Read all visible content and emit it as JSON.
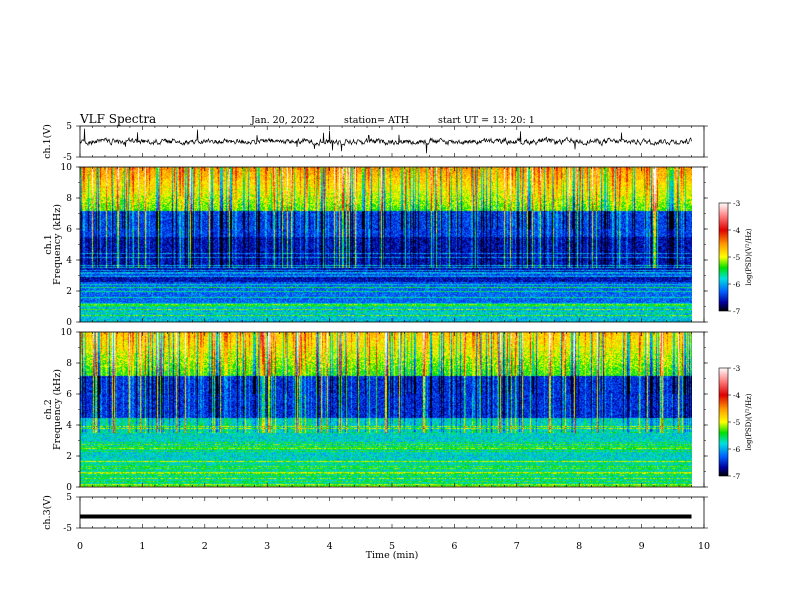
{
  "header": {
    "title": "VLF  Spectra",
    "date": "Jan. 20, 2022",
    "station": "station= ATH",
    "start": "start  UT  =    13: 20: 1"
  },
  "chart_data": [
    {
      "id": "ch1-waveform",
      "type": "line",
      "ylabel": "ch.1(V)",
      "ylim": [
        -5,
        5
      ],
      "yticks": [
        "5",
        "-5"
      ],
      "xlim": [
        0,
        10
      ],
      "x_end": 9.8,
      "note": "noisy waveform around ~0 V with occasional spikes"
    },
    {
      "id": "ch1-spectrogram",
      "type": "heatmap",
      "ylabel": [
        "ch.1",
        "Frequency  (kHz)"
      ],
      "ylim": [
        0,
        10
      ],
      "yticks": [
        "10",
        "8",
        "6",
        "4",
        "2",
        "0"
      ],
      "xlim": [
        0,
        10
      ],
      "x_end": 9.8,
      "colorbar": {
        "label": "log(PSD)(V²/Hz)",
        "range": [
          -7,
          -3
        ],
        "ticks": [
          "-3",
          "-4",
          "-5",
          "-6",
          "-7"
        ]
      }
    },
    {
      "id": "ch2-spectrogram",
      "type": "heatmap",
      "ylabel": [
        "ch.2",
        "Frequency  (kHz)"
      ],
      "ylim": [
        0,
        10
      ],
      "yticks": [
        "10",
        "8",
        "6",
        "4",
        "2",
        "0"
      ],
      "xlim": [
        0,
        10
      ],
      "x_end": 9.8,
      "colorbar": {
        "label": "log(PSD)(V²/Hz)",
        "range": [
          -7,
          -3
        ],
        "ticks": [
          "-3",
          "-4",
          "-5",
          "-6",
          "-7"
        ]
      }
    },
    {
      "id": "ch3-waveform",
      "type": "line",
      "ylabel": "ch.3(V)",
      "ylim": [
        -5,
        5
      ],
      "yticks": [
        "5",
        "-5"
      ],
      "xlim": [
        0,
        10
      ],
      "x_end": 9.8,
      "xlabel": "Time  (min)",
      "xticks": [
        "0",
        "1",
        "2",
        "3",
        "4",
        "5",
        "6",
        "7",
        "8",
        "9",
        "10"
      ],
      "note": "flat thick trace near -1 V"
    }
  ]
}
